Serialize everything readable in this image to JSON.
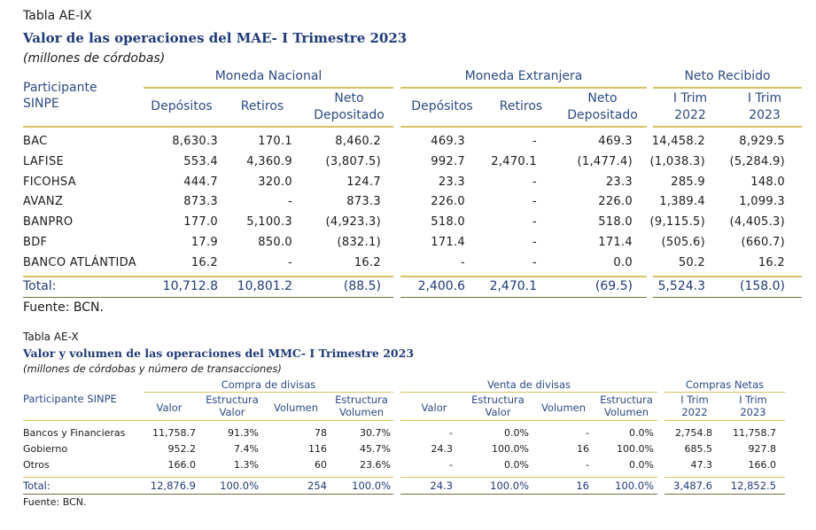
{
  "t1": {
    "label": "Tabla AE-IX",
    "title": "Valor de las operaciones del MAE- I Trimestre 2023",
    "unit": "(millones de córdobas)",
    "participant_header": "Participante SINPE",
    "group_mn": "Moneda Nacional",
    "group_me": "Moneda Extranjera",
    "group_nr": "Neto Recibido",
    "col_dep": "Depósitos",
    "col_ret": "Retiros",
    "col_neto": "Neto Depositado",
    "col_t22": "I Trim 2022",
    "col_t23": "I Trim 2023",
    "rows": [
      {
        "name": "BAC",
        "mn_dep": "8,630.3",
        "mn_ret": "170.1",
        "mn_neto": "8,460.2",
        "me_dep": "469.3",
        "me_ret": "-",
        "me_neto": "469.3",
        "t22": "14,458.2",
        "t23": "8,929.5"
      },
      {
        "name": "LAFISE",
        "mn_dep": "553.4",
        "mn_ret": "4,360.9",
        "mn_neto": "(3,807.5)",
        "me_dep": "992.7",
        "me_ret": "2,470.1",
        "me_neto": "(1,477.4)",
        "t22": "(1,038.3)",
        "t23": "(5,284.9)"
      },
      {
        "name": "FICOHSA",
        "mn_dep": "444.7",
        "mn_ret": "320.0",
        "mn_neto": "124.7",
        "me_dep": "23.3",
        "me_ret": "-",
        "me_neto": "23.3",
        "t22": "285.9",
        "t23": "148.0"
      },
      {
        "name": "AVANZ",
        "mn_dep": "873.3",
        "mn_ret": "-",
        "mn_neto": "873.3",
        "me_dep": "226.0",
        "me_ret": "-",
        "me_neto": "226.0",
        "t22": "1,389.4",
        "t23": "1,099.3"
      },
      {
        "name": "BANPRO",
        "mn_dep": "177.0",
        "mn_ret": "5,100.3",
        "mn_neto": "(4,923.3)",
        "me_dep": "518.0",
        "me_ret": "-",
        "me_neto": "518.0",
        "t22": "(9,115.5)",
        "t23": "(4,405.3)"
      },
      {
        "name": "BDF",
        "mn_dep": "17.9",
        "mn_ret": "850.0",
        "mn_neto": "(832.1)",
        "me_dep": "171.4",
        "me_ret": "-",
        "me_neto": "171.4",
        "t22": "(505.6)",
        "t23": "(660.7)"
      },
      {
        "name": "BANCO ATLÁNTIDA",
        "mn_dep": "16.2",
        "mn_ret": "-",
        "mn_neto": "16.2",
        "me_dep": "-",
        "me_ret": "-",
        "me_neto": "0.0",
        "t22": "50.2",
        "t23": "16.2"
      }
    ],
    "total": {
      "name": "Total:",
      "mn_dep": "10,712.8",
      "mn_ret": "10,801.2",
      "mn_neto": "(88.5)",
      "me_dep": "2,400.6",
      "me_ret": "2,470.1",
      "me_neto": "(69.5)",
      "t22": "5,524.3",
      "t23": "(158.0)"
    },
    "source": "Fuente: BCN."
  },
  "t2": {
    "label": "Tabla AE-X",
    "title": "Valor y volumen de las operaciones del MMC- I Trimestre 2023",
    "unit": "(millones de córdobas y número de transacciones)",
    "participant_header": "Participante  SINPE",
    "group_compra": "Compra de divisas",
    "group_venta": "Venta de divisas",
    "group_netas": "Compras Netas",
    "col_valor": "Valor",
    "col_ev": "Estructura Valor",
    "col_vol": "Volumen",
    "col_evol": "Estructura Volumen",
    "col_t22": "I Trim 2022",
    "col_t23": "I Trim 2023",
    "rows": [
      {
        "name": "Bancos y Financieras",
        "c_val": "11,758.7",
        "c_ev": "91.3%",
        "c_vol": "78",
        "c_evol": "30.7%",
        "v_val": "-",
        "v_ev": "0.0%",
        "v_vol": "-",
        "v_evol": "0.0%",
        "t22": "2,754.8",
        "t23": "11,758.7"
      },
      {
        "name": "Gobierno",
        "c_val": "952.2",
        "c_ev": "7.4%",
        "c_vol": "116",
        "c_evol": "45.7%",
        "v_val": "24.3",
        "v_ev": "100.0%",
        "v_vol": "16",
        "v_evol": "100.0%",
        "t22": "685.5",
        "t23": "927.8"
      },
      {
        "name": "Otros",
        "c_val": "166.0",
        "c_ev": "1.3%",
        "c_vol": "60",
        "c_evol": "23.6%",
        "v_val": "-",
        "v_ev": "0.0%",
        "v_vol": "-",
        "v_evol": "0.0%",
        "t22": "47.3",
        "t23": "166.0"
      }
    ],
    "total": {
      "name": "Total:",
      "c_val": "12,876.9",
      "c_ev": "100.0%",
      "c_vol": "254",
      "c_evol": "100.0%",
      "v_val": "24.3",
      "v_ev": "100.0%",
      "v_vol": "16",
      "v_evol": "100.0%",
      "t22": "3,487.6",
      "t23": "12,852.5"
    },
    "source": "Fuente: BCN."
  }
}
